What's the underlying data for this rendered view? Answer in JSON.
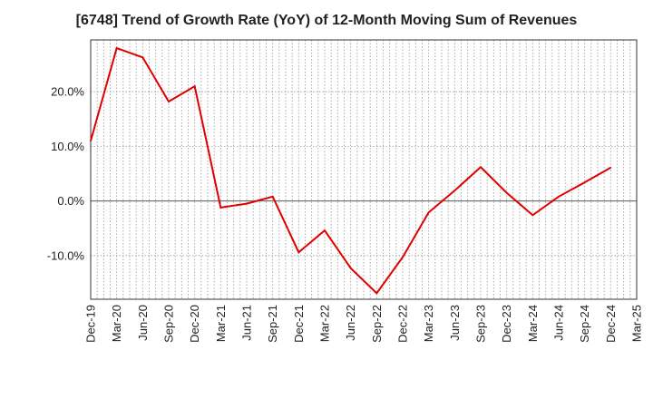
{
  "chart_data": {
    "type": "line",
    "title": "[6748]  Trend of Growth Rate (YoY) of 12-Month Moving Sum of Revenues",
    "xlabel": "",
    "ylabel": "",
    "ylim": [
      -18,
      29.5
    ],
    "yticks": [
      -10,
      0,
      10,
      20
    ],
    "ytick_labels": [
      "-10.0%",
      "0.0%",
      "10.0%",
      "20.0%"
    ],
    "zero_line": true,
    "grid": true,
    "line_color": "#e00000",
    "categories": [
      "Dec-19",
      "Mar-20",
      "Jun-20",
      "Sep-20",
      "Dec-20",
      "Mar-21",
      "Jun-21",
      "Sep-21",
      "Dec-21",
      "Mar-22",
      "Jun-22",
      "Sep-22",
      "Dec-22",
      "Mar-23",
      "Jun-23",
      "Sep-23",
      "Dec-23",
      "Mar-24",
      "Jun-24",
      "Sep-24",
      "Dec-24",
      "Mar-25"
    ],
    "series": [
      {
        "values": [
          11.0,
          28.0,
          26.3,
          18.2,
          21.0,
          -1.2,
          -0.5,
          0.8,
          -9.4,
          -5.4,
          -12.3,
          -16.9,
          -10.3,
          -2.1,
          1.9,
          6.2,
          1.5,
          -2.6,
          0.8,
          3.4,
          6.1,
          null
        ]
      }
    ]
  }
}
